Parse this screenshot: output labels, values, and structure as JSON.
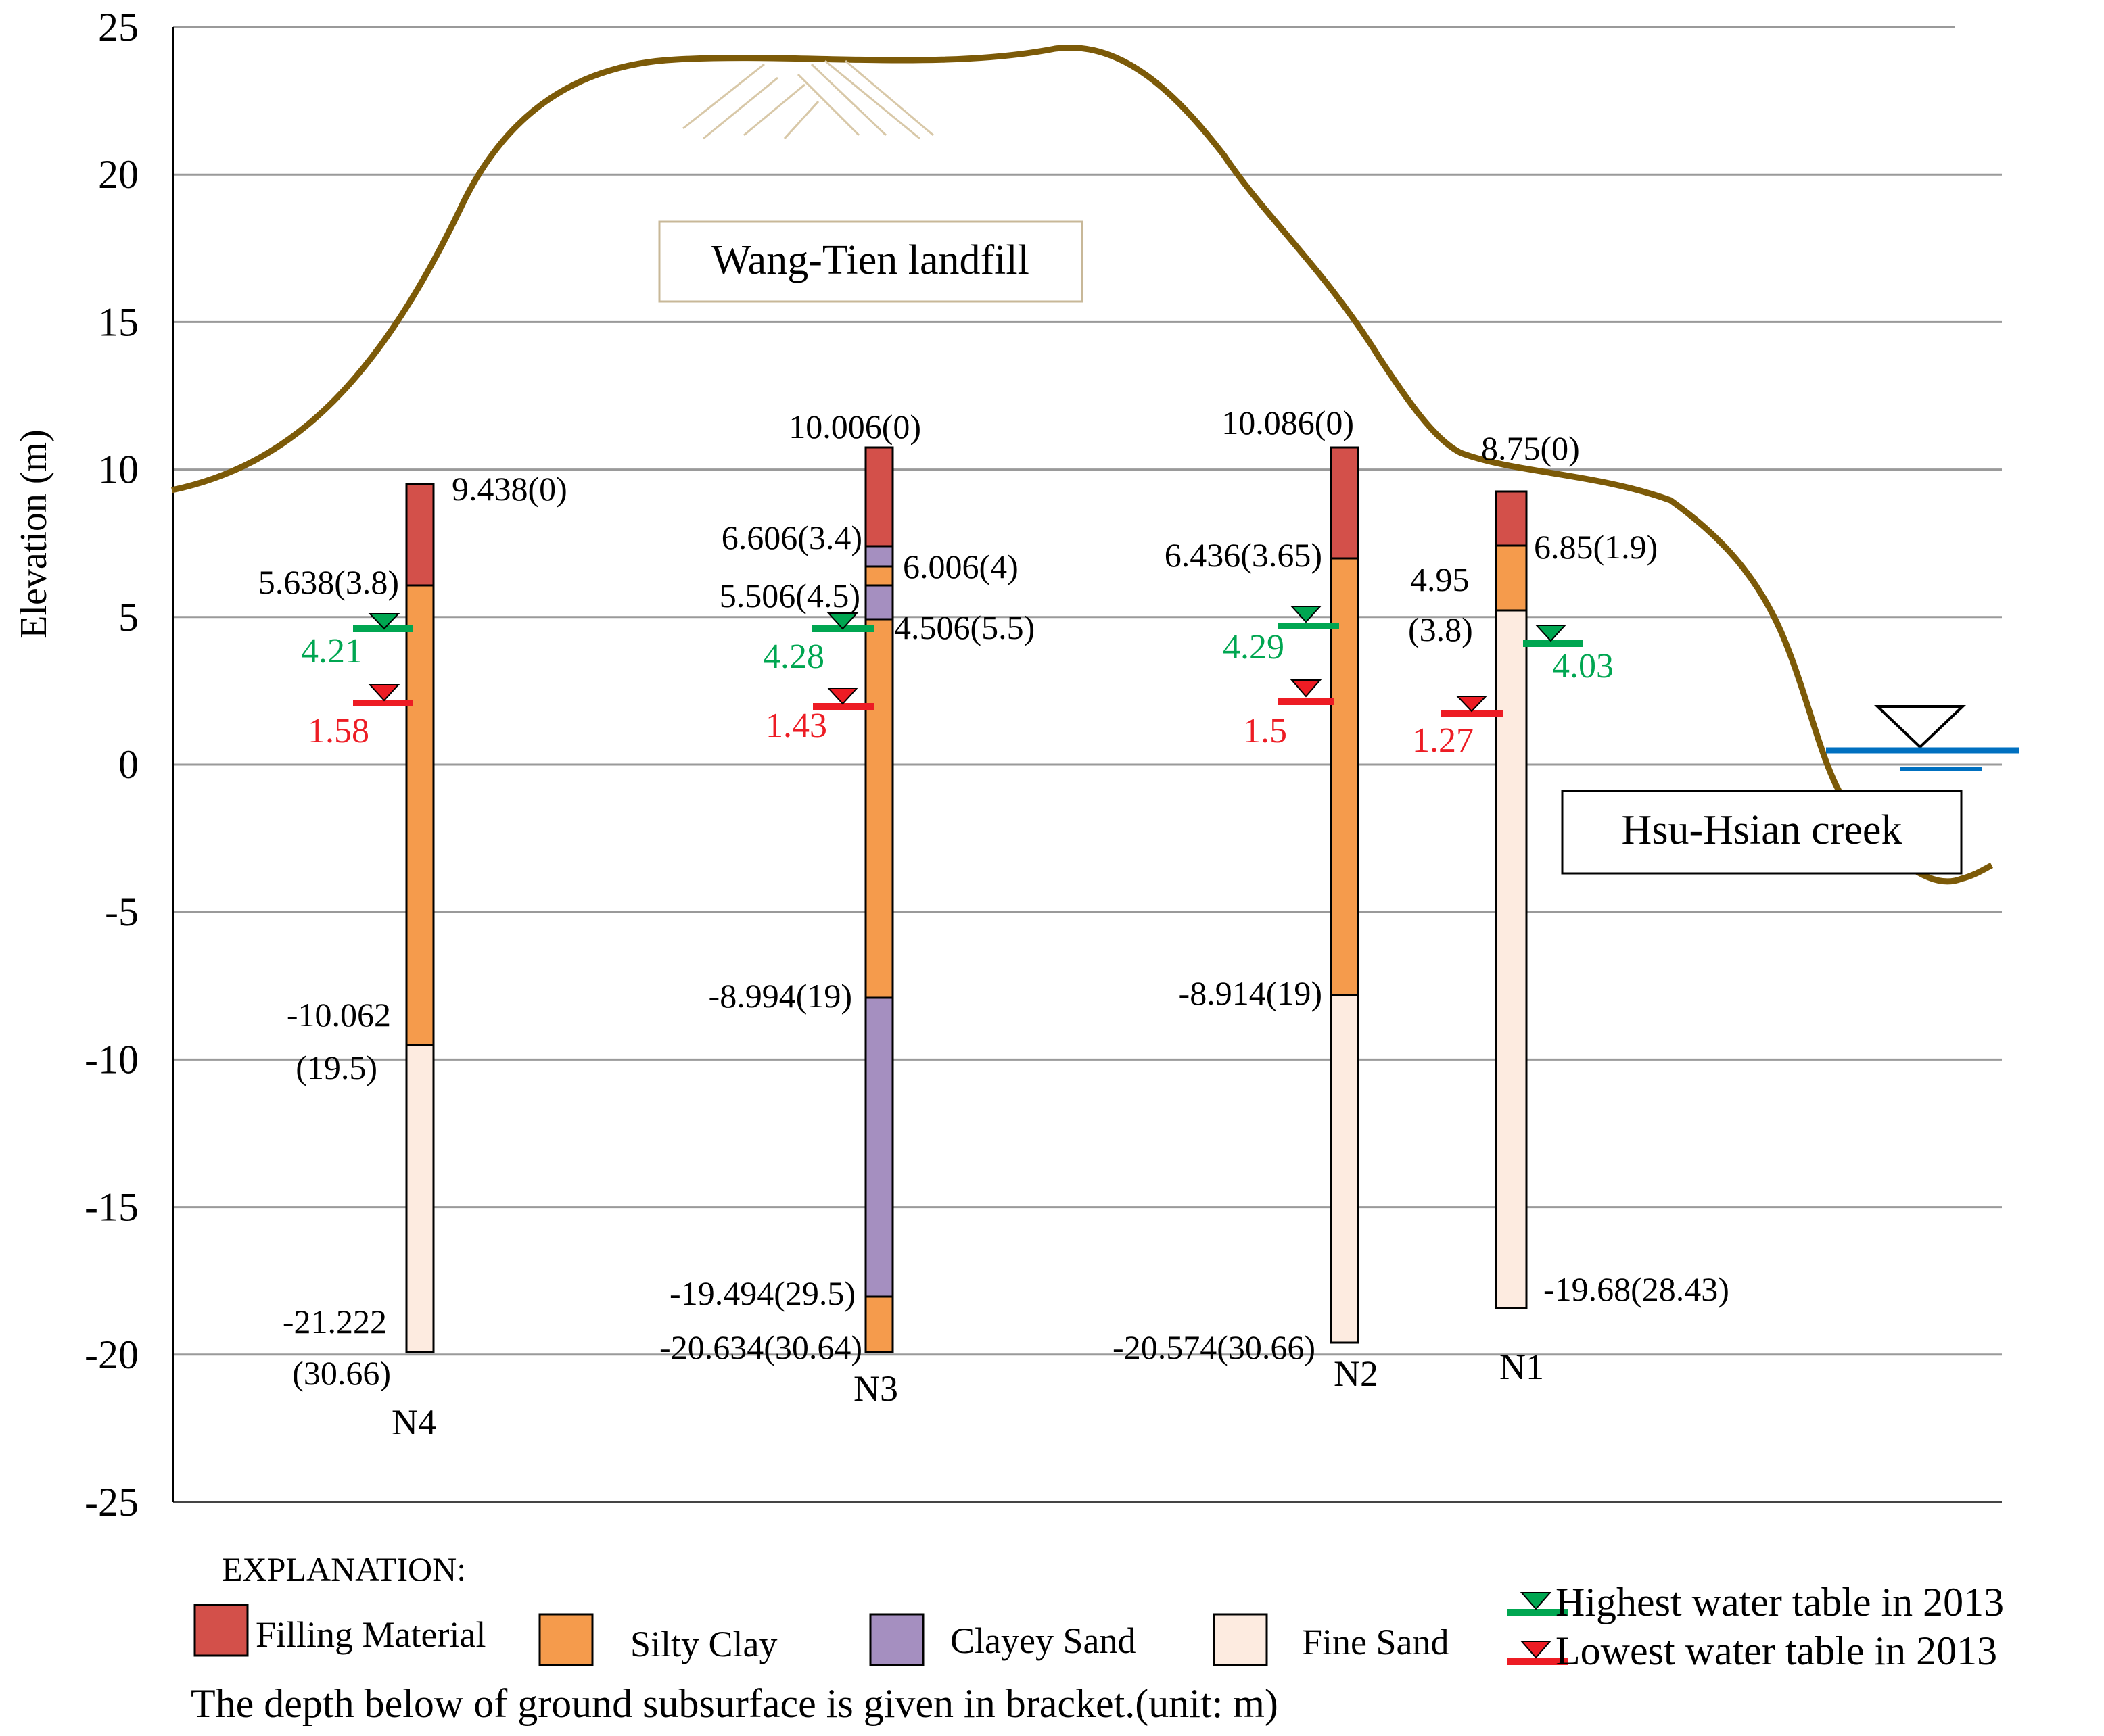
{
  "y_axis": {
    "label": "Elevation (m)",
    "range": [
      -25,
      25
    ],
    "ticks": [
      "25",
      "20",
      "15",
      "10",
      "5",
      "0",
      "-5",
      "-10",
      "-15",
      "-20",
      "-25"
    ]
  },
  "landfill_label": "Wang-Tien landfill",
  "creek_label": "Hsu-Hsian creek",
  "boreholes": [
    {
      "name": "N4",
      "top": 9.438,
      "layers": [
        {
          "material": "filling",
          "top": 9.438,
          "bottom": 5.638
        },
        {
          "material": "silty_clay",
          "top": 5.638,
          "bottom": -10.062
        },
        {
          "material": "fine_sand",
          "top": -10.062,
          "bottom": -21.222
        }
      ],
      "labels": [
        "9.438(0)",
        "5.638(3.8)",
        "-10.062",
        "(19.5)",
        "-21.222",
        "(30.66)"
      ],
      "water_high": 4.21,
      "water_high_label": "4.21",
      "water_low": 1.58,
      "water_low_label": "1.58"
    },
    {
      "name": "N3",
      "top": 10.006,
      "layers": [
        {
          "material": "filling",
          "top": 10.006,
          "bottom": 6.606
        },
        {
          "material": "clayey_sand",
          "top": 6.606,
          "bottom": 6.006
        },
        {
          "material": "silty_clay",
          "top": 6.006,
          "bottom": 5.506
        },
        {
          "material": "clayey_sand",
          "top": 5.506,
          "bottom": 4.506
        },
        {
          "material": "silty_clay",
          "top": 4.506,
          "bottom": -8.994
        },
        {
          "material": "clayey_sand",
          "top": -8.994,
          "bottom": -19.494
        },
        {
          "material": "silty_clay",
          "top": -19.494,
          "bottom": -20.634
        }
      ],
      "labels": [
        "10.006(0)",
        "6.606(3.4)",
        "6.006(4)",
        "5.506(4.5)",
        "4.506(5.5)",
        "-8.994(19)",
        "-19.494(29.5)",
        "-20.634(30.64)"
      ],
      "water_high": 4.28,
      "water_high_label": "4.28",
      "water_low": 1.43,
      "water_low_label": "1.43"
    },
    {
      "name": "N2",
      "top": 10.086,
      "layers": [
        {
          "material": "filling",
          "top": 10.086,
          "bottom": 6.436
        },
        {
          "material": "silty_clay",
          "top": 6.436,
          "bottom": -8.914
        },
        {
          "material": "fine_sand",
          "top": -8.914,
          "bottom": -20.574
        }
      ],
      "labels": [
        "10.086(0)",
        "6.436(3.65)",
        "-8.914(19)",
        "-20.574(30.66)"
      ],
      "water_high": 4.29,
      "water_high_label": "4.29",
      "water_low": 1.5,
      "water_low_label": "1.5"
    },
    {
      "name": "N1",
      "top": 8.75,
      "layers": [
        {
          "material": "filling",
          "top": 8.75,
          "bottom": 6.85
        },
        {
          "material": "silty_clay",
          "top": 6.85,
          "bottom": 4.95
        },
        {
          "material": "fine_sand",
          "top": 4.95,
          "bottom": -19.68
        }
      ],
      "labels": [
        "8.75(0)",
        "6.85(1.9)",
        "4.95",
        "(3.8)",
        "-19.68(28.43)"
      ],
      "water_high": 4.03,
      "water_high_label": "4.03",
      "water_low": 1.27,
      "water_low_label": "1.27"
    }
  ],
  "legend": {
    "title": "EXPLANATION:",
    "materials": [
      {
        "key": "filling",
        "label": "Filling Material",
        "color": "#d3504a"
      },
      {
        "key": "silty_clay",
        "label": "Silty Clay",
        "color": "#f59b4c"
      },
      {
        "key": "clayey_sand",
        "label": "Clayey Sand",
        "color": "#a58fc0"
      },
      {
        "key": "fine_sand",
        "label": "Fine Sand",
        "color": "#fdebe0"
      }
    ],
    "highest": "Highest water table in 2013",
    "lowest": "Lowest water table in 2013",
    "note": "The depth below of ground subsurface is given in bracket.(unit: m)"
  },
  "colors": {
    "ground": "#7c5a08",
    "highest_water": "#00a651",
    "lowest_water": "#ed1c24",
    "creek_water": "#0070c0",
    "grid": "#9a9a9a"
  }
}
